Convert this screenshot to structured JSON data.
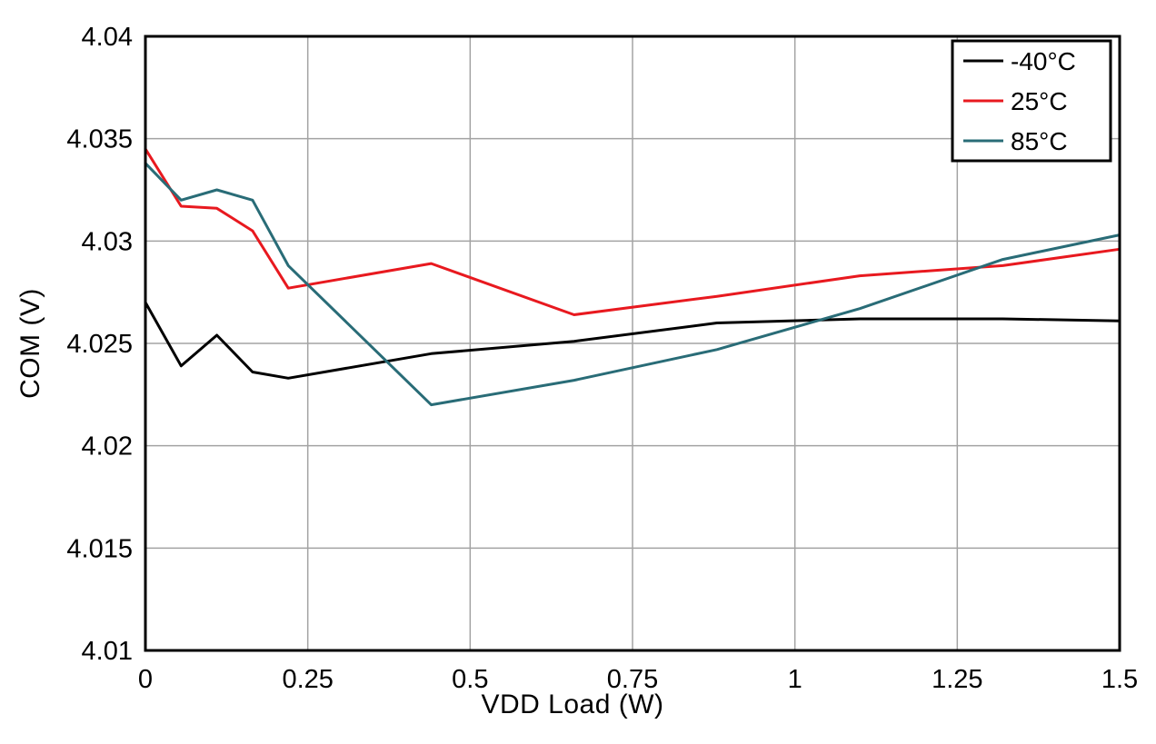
{
  "chart_data": {
    "type": "line",
    "title": "",
    "xlabel": "VDD Load (W)",
    "ylabel": "COM (V)",
    "xlim": [
      0,
      1.5
    ],
    "ylim": [
      4.01,
      4.04
    ],
    "grid": true,
    "legend_position": "top-right",
    "x_ticks": [
      {
        "v": 0,
        "label": "0"
      },
      {
        "v": 0.25,
        "label": "0.25"
      },
      {
        "v": 0.5,
        "label": "0.5"
      },
      {
        "v": 0.75,
        "label": "0.75"
      },
      {
        "v": 1,
        "label": "1"
      },
      {
        "v": 1.25,
        "label": "1.25"
      },
      {
        "v": 1.5,
        "label": "1.5"
      }
    ],
    "y_ticks": [
      {
        "v": 4.01,
        "label": "4.01"
      },
      {
        "v": 4.015,
        "label": "4.015"
      },
      {
        "v": 4.02,
        "label": "4.02"
      },
      {
        "v": 4.025,
        "label": "4.025"
      },
      {
        "v": 4.03,
        "label": "4.03"
      },
      {
        "v": 4.035,
        "label": "4.035"
      },
      {
        "v": 4.04,
        "label": "4.04"
      }
    ],
    "x": [
      0,
      0.055,
      0.11,
      0.165,
      0.22,
      0.44,
      0.66,
      0.88,
      1.1,
      1.32,
      1.5
    ],
    "series": [
      {
        "name": "-40°C",
        "color": "#000000",
        "values": [
          4.027,
          4.0239,
          4.0254,
          4.0236,
          4.0233,
          4.0245,
          4.0251,
          4.026,
          4.0262,
          4.0262,
          4.0261
        ]
      },
      {
        "name": "25°C",
        "color": "#e8191f",
        "values": [
          4.0345,
          4.0317,
          4.0316,
          4.0305,
          4.0277,
          4.0289,
          4.0264,
          4.0273,
          4.0283,
          4.0288,
          4.0296
        ]
      },
      {
        "name": "85°C",
        "color": "#296c77",
        "values": [
          4.0338,
          4.032,
          4.0325,
          4.032,
          4.0288,
          4.022,
          4.0232,
          4.0247,
          4.0267,
          4.0291,
          4.0303
        ]
      }
    ],
    "colors": {
      "grid": "#a3a3a3",
      "axis": "#000000",
      "background": "#ffffff"
    }
  }
}
